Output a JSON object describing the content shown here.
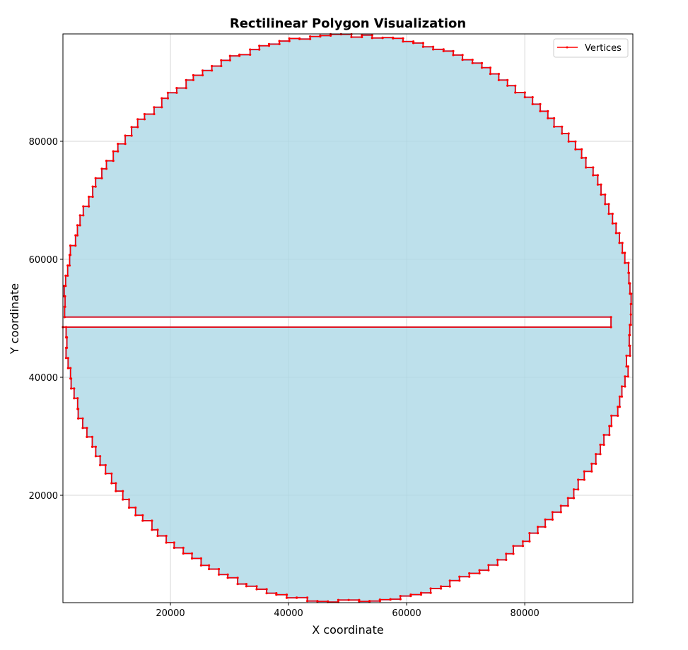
{
  "chart_data": {
    "type": "line",
    "title": "Rectilinear Polygon Visualization",
    "xlabel": "X coordinate",
    "ylabel": "Y coordinate",
    "xlim": [
      1800,
      98300
    ],
    "ylim": [
      1800,
      98200
    ],
    "xticks": [
      20000,
      40000,
      60000,
      80000
    ],
    "yticks": [
      20000,
      40000,
      60000,
      80000
    ],
    "xtick_labels": [
      "20000",
      "40000",
      "60000",
      "80000"
    ],
    "ytick_labels": [
      "20000",
      "40000",
      "60000",
      "80000"
    ],
    "grid": true,
    "legend": {
      "placement": "top-right",
      "entries": [
        "Vertices"
      ]
    },
    "polygon": {
      "shape": "rectilinear approximation of a circle with a horizontal slot cut from the left",
      "center": [
        50000,
        50000
      ],
      "radius": 48200,
      "steps": 170,
      "slot": {
        "x": [
          1800,
          94600
        ],
        "y": [
          48500,
          50200
        ]
      }
    },
    "colors": {
      "fill": "#add8e6",
      "edge": "#ff0000"
    }
  }
}
